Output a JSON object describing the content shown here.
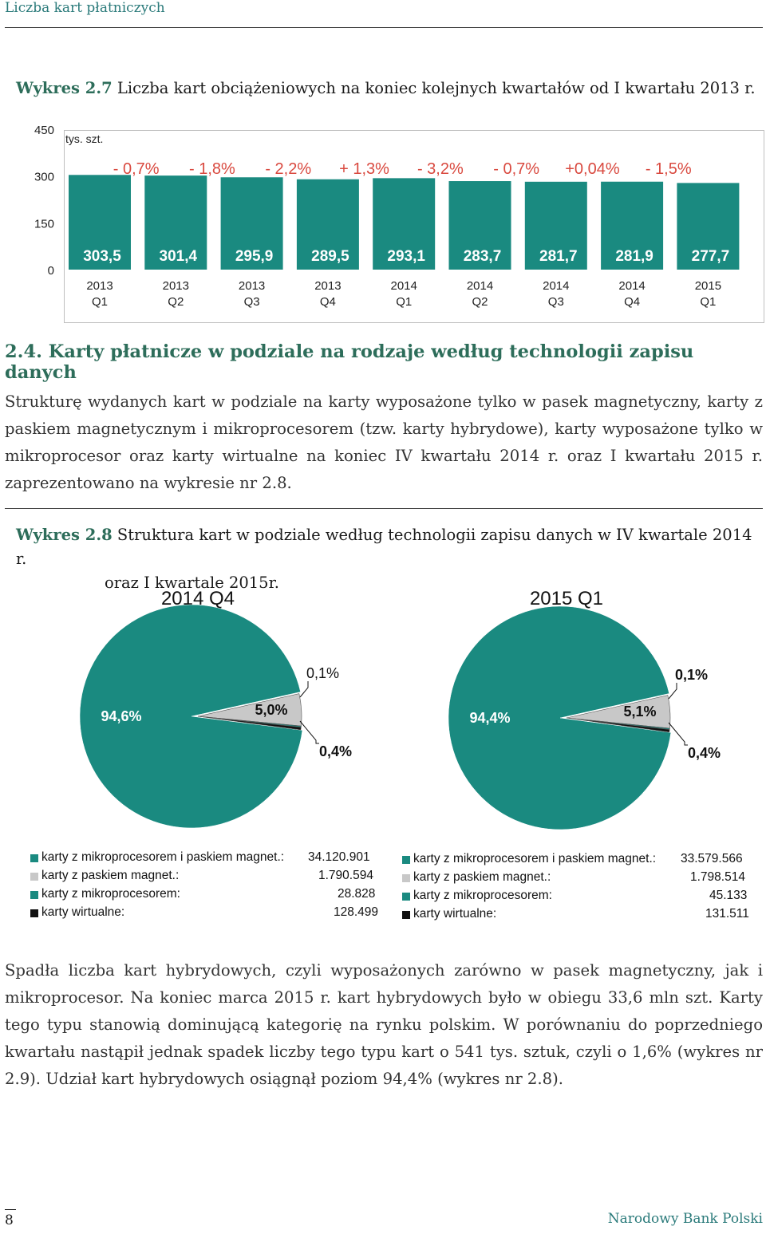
{
  "running_head": "Liczba kart płatniczych",
  "figure27": {
    "prefix": "Wykres 2.7",
    "title": " Liczba kart obciążeniowych na koniec kolejnych kwartałów od I kwartału 2013 r."
  },
  "chart_data": [
    {
      "type": "bar",
      "unit_label": "tys. szt.",
      "ylim": [
        0,
        450
      ],
      "yticks": [
        "0",
        "150",
        "300",
        "450"
      ],
      "categories_year": [
        "2013",
        "2013",
        "2013",
        "2013",
        "2014",
        "2014",
        "2014",
        "2014",
        "2015"
      ],
      "categories_quarter": [
        "Q1",
        "Q2",
        "Q3",
        "Q4",
        "Q1",
        "Q2",
        "Q3",
        "Q4",
        "Q1"
      ],
      "values": [
        303.5,
        301.4,
        295.9,
        289.5,
        293.1,
        283.7,
        281.7,
        281.9,
        277.7
      ],
      "value_labels": [
        "303,5",
        "301,4",
        "295,9",
        "289,5",
        "293,1",
        "283,7",
        "281,7",
        "281,9",
        "277,7"
      ],
      "change_labels": [
        "- 0,7%",
        "- 1,8%",
        "- 2,2%",
        "+ 1,3%",
        "- 3,2%",
        "- 0,7%",
        "+0,04%",
        "- 1,5%"
      ],
      "bar_color": "#1a8a80"
    },
    {
      "type": "pie",
      "title": "2014 Q4",
      "slices": [
        {
          "name": "karty z mikroprocesorem i paskiem magnet.",
          "value": 94.6,
          "label": "94,6%",
          "color": "#1a8a80"
        },
        {
          "name": "karty z paskiem magnet.",
          "value": 5.0,
          "label": "5,0%",
          "color": "#c8c8c8"
        },
        {
          "name": "karty z mikroprocesorem",
          "value": 0.1,
          "label": "0,1%",
          "color": "#1a8a80"
        },
        {
          "name": "karty wirtualne",
          "value": 0.4,
          "label": "0,4%",
          "color": "#111111"
        }
      ],
      "legend": [
        {
          "label": "karty z mikroprocesorem i paskiem magnet.:",
          "value": "34.120.901",
          "color": "#1a8a80"
        },
        {
          "label": "karty z paskiem magnet.:",
          "value": "1.790.594",
          "color": "#c8c8c8"
        },
        {
          "label": "karty z mikroprocesorem:",
          "value": "28.828",
          "color": "#1a8a80"
        },
        {
          "label": "karty wirtualne:",
          "value": "128.499",
          "color": "#111111"
        }
      ]
    },
    {
      "type": "pie",
      "title": "2015 Q1",
      "slices": [
        {
          "name": "karty z mikroprocesorem i paskiem magnet.",
          "value": 94.4,
          "label": "94,4%",
          "color": "#1a8a80"
        },
        {
          "name": "karty z paskiem magnet.",
          "value": 5.1,
          "label": "5,1%",
          "color": "#c8c8c8"
        },
        {
          "name": "karty z mikroprocesorem",
          "value": 0.1,
          "label": "0,1%",
          "color": "#1a8a80"
        },
        {
          "name": "karty wirtualne",
          "value": 0.4,
          "label": "0,4%",
          "color": "#111111"
        }
      ],
      "legend": [
        {
          "label": "karty z mikroprocesorem i paskiem magnet.:",
          "value": "33.579.566",
          "color": "#1a8a80"
        },
        {
          "label": "karty z paskiem magnet.:",
          "value": "1.798.514",
          "color": "#c8c8c8"
        },
        {
          "label": "karty z mikroprocesorem:",
          "value": "45.133",
          "color": "#1a8a80"
        },
        {
          "label": "karty wirtualne:",
          "value": "131.511",
          "color": "#111111"
        }
      ]
    }
  ],
  "section": {
    "heading": "2.4. Karty płatnicze w podziale na rodzaje według technologii zapisu danych",
    "paragraph1": "Strukturę wydanych kart w podziale na karty wyposażone tylko w pasek magnetyczny, karty z paskiem magnetycznym i mikroprocesorem (tzw. karty hybrydowe), karty wyposażone tylko w mikroprocesor oraz karty wirtualne na koniec IV kwartału 2014 r. oraz I kwartału 2015 r. zaprezentowano na wykresie nr 2.8."
  },
  "figure28": {
    "prefix": "Wykres 2.8",
    "title_line1": " Struktura kart w podziale według technologii zapisu danych w IV kwartale 2014 r.",
    "title_line2": "oraz I kwartale 2015r."
  },
  "paragraph2": "Spadła liczba kart hybrydowych, czyli wyposażonych zarówno w pasek magnetyczny, jak i mikroprocesor. Na koniec marca 2015 r. kart hybrydowych było w obiegu 33,6 mln szt. Karty tego typu stanowią dominującą kategorię na rynku polskim. W porównaniu do poprzedniego kwartału nastąpił jednak spadek liczby tego typu kart o 541 tys. sztuk, czyli o 1,6% (wykres nr 2.9). Udział kart hybrydowych osiągnął poziom 94,4% (wykres nr 2.8).",
  "footer": {
    "page_number": "8",
    "brand": "Narodowy Bank Polski"
  }
}
